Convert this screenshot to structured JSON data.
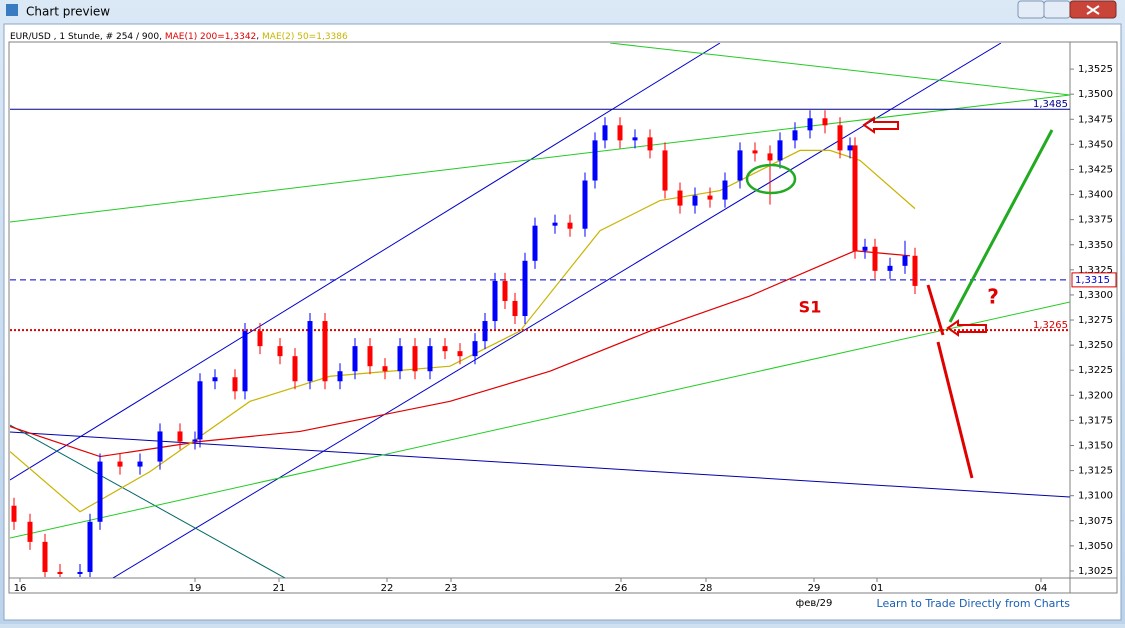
{
  "window_title": "Chart preview",
  "footer_link": "Learn to Trade Directly from Charts",
  "chart_data": {
    "type": "candlestick",
    "title": "EUR/USD , 1 Stunde, # 254 / 900,",
    "x": [
      1,
      5,
      8.75,
      12.5,
      17.5,
      20,
      22.5,
      27.5,
      32.5,
      37.5,
      42.5,
      46.25,
      47.5,
      51.25,
      56.25,
      58.75,
      62.5,
      67.5,
      71.25,
      75,
      78.75,
      82.5,
      86.25,
      90,
      93.75,
      97.5,
      101.25,
      105,
      108.75,
      112.5,
      116.25,
      118.75,
      121.25,
      123.75,
      126.25,
      128.75,
      131.25,
      136.25,
      140,
      143.75,
      146.25,
      148.75,
      152.5,
      156.25,
      160,
      163.75,
      167.5,
      171.25,
      175,
      178.75,
      182.5,
      186.25,
      190,
      192.5,
      196.25,
      200,
      203.75,
      207.5,
      210,
      211.25,
      213.75,
      216.25,
      220,
      223.75,
      226.25
    ],
    "open": [
      1.309,
      1.3074,
      1.3054,
      1.3024,
      1.3022,
      1.3024,
      1.3074,
      1.3134,
      1.3129,
      1.3134,
      1.3164,
      1.3154,
      1.3156,
      1.3214,
      1.3218,
      1.3204,
      1.3264,
      1.3249,
      1.3239,
      1.3214,
      1.3274,
      1.3214,
      1.3224,
      1.3249,
      1.3229,
      1.3224,
      1.3249,
      1.3224,
      1.3249,
      1.3244,
      1.3239,
      1.3254,
      1.3274,
      1.3314,
      1.3294,
      1.3279,
      1.3334,
      1.3369,
      1.3372,
      1.3366,
      1.3414,
      1.3454,
      1.3469,
      1.3454,
      1.3457,
      1.3444,
      1.3404,
      1.3389,
      1.3399,
      1.3395,
      1.3414,
      1.3444,
      1.3441,
      1.3434,
      1.3454,
      1.3464,
      1.3476,
      1.3469,
      1.3444,
      1.3449,
      1.3344,
      1.3348,
      1.3324,
      1.3329,
      1.3339
    ],
    "high": [
      1.3098,
      1.3082,
      1.3062,
      1.3032,
      1.3032,
      1.3082,
      1.3142,
      1.3142,
      1.3142,
      1.3172,
      1.3172,
      1.3164,
      1.3222,
      1.3226,
      1.3226,
      1.3272,
      1.3272,
      1.3257,
      1.3247,
      1.3282,
      1.3282,
      1.3232,
      1.3257,
      1.3257,
      1.3237,
      1.3257,
      1.3257,
      1.3257,
      1.3257,
      1.3252,
      1.3262,
      1.3282,
      1.3322,
      1.3322,
      1.3302,
      1.3342,
      1.3377,
      1.338,
      1.338,
      1.3422,
      1.3462,
      1.3477,
      1.3477,
      1.3465,
      1.3465,
      1.3452,
      1.3412,
      1.3407,
      1.3407,
      1.3422,
      1.3452,
      1.3452,
      1.3449,
      1.3462,
      1.3472,
      1.3484,
      1.3484,
      1.3477,
      1.3457,
      1.3457,
      1.3356,
      1.3356,
      1.3337,
      1.3354,
      1.3347
    ],
    "low": [
      1.3066,
      1.3046,
      1.3019,
      1.3019,
      1.3019,
      1.3019,
      1.3066,
      1.3121,
      1.3121,
      1.3126,
      1.3146,
      1.3146,
      1.3148,
      1.3206,
      1.3196,
      1.3196,
      1.3241,
      1.3231,
      1.3206,
      1.3206,
      1.3206,
      1.3206,
      1.3216,
      1.3221,
      1.3216,
      1.3216,
      1.3216,
      1.3216,
      1.3236,
      1.3231,
      1.3231,
      1.3246,
      1.3266,
      1.3286,
      1.3271,
      1.3271,
      1.3326,
      1.3361,
      1.3358,
      1.3358,
      1.3406,
      1.3446,
      1.3446,
      1.3446,
      1.3436,
      1.3396,
      1.3381,
      1.3381,
      1.3387,
      1.3387,
      1.3406,
      1.3433,
      1.339,
      1.3426,
      1.3446,
      1.3456,
      1.3461,
      1.3436,
      1.3436,
      1.3336,
      1.3336,
      1.3316,
      1.3316,
      1.3321,
      1.3301
    ],
    "close": [
      1.3074,
      1.3054,
      1.3024,
      1.3022,
      1.3024,
      1.3074,
      1.3134,
      1.3129,
      1.3134,
      1.3164,
      1.3154,
      1.3156,
      1.3214,
      1.3218,
      1.3204,
      1.3264,
      1.3249,
      1.3239,
      1.3214,
      1.3274,
      1.3214,
      1.3224,
      1.3249,
      1.3229,
      1.3224,
      1.3249,
      1.3224,
      1.3249,
      1.3244,
      1.3239,
      1.3254,
      1.3274,
      1.3314,
      1.3294,
      1.3279,
      1.3334,
      1.3369,
      1.3372,
      1.3366,
      1.3414,
      1.3454,
      1.3469,
      1.3454,
      1.3457,
      1.3444,
      1.3404,
      1.3389,
      1.3399,
      1.3395,
      1.3414,
      1.3444,
      1.3441,
      1.3434,
      1.3454,
      1.3464,
      1.3476,
      1.3469,
      1.3444,
      1.3449,
      1.3344,
      1.3348,
      1.3324,
      1.3329,
      1.3339,
      1.3309
    ],
    "up_color": "#0000ff",
    "down_color": "#ff0000",
    "series": [
      {
        "name": "MAE(1) 200=1,3342",
        "color": "#e00000",
        "x": [
          0,
          22.5,
          47.5,
          72.5,
          110,
          135,
          160,
          185,
          202.5,
          211.25,
          225
        ],
        "values": [
          1.3169,
          1.3139,
          1.3154,
          1.3164,
          1.3194,
          1.3224,
          1.3264,
          1.3299,
          1.3329,
          1.3344,
          1.3339
        ]
      },
      {
        "name": "MAE(2) 50=1,3386",
        "color": "#c8b400",
        "x": [
          0,
          17.5,
          35,
          60,
          80,
          110,
          127.5,
          147.5,
          162.5,
          177.5,
          197.5,
          205,
          212.5,
          226.25
        ],
        "values": [
          1.3144,
          1.3084,
          1.3124,
          1.3194,
          1.3219,
          1.3229,
          1.3264,
          1.3364,
          1.3394,
          1.3404,
          1.3444,
          1.3444,
          1.3434,
          1.3386
        ]
      }
    ],
    "price_lines": [
      {
        "value": 1.3485,
        "label": "1,3485",
        "color": "#00008b"
      },
      {
        "value": 1.3315,
        "label": "1,3315",
        "color": "#0000cc"
      },
      {
        "value": 1.3265,
        "label": "1,3265",
        "color": "#dd0000"
      }
    ],
    "annotations": [
      "S1",
      "?"
    ],
    "x_sublabel": "фев/29",
    "xlim": [
      0,
      265
    ],
    "xticks": [
      {
        "value": 2.5,
        "label": "16"
      },
      {
        "value": 46.25,
        "label": "19"
      },
      {
        "value": 67.25,
        "label": "21"
      },
      {
        "value": 94.25,
        "label": "22"
      },
      {
        "value": 110.25,
        "label": "23"
      },
      {
        "value": 152.75,
        "label": "26"
      },
      {
        "value": 174,
        "label": "28"
      },
      {
        "value": 201,
        "label": "29"
      },
      {
        "value": 216.75,
        "label": "01"
      },
      {
        "value": 257.75,
        "label": "04"
      }
    ],
    "ylim": [
      1.3018,
      1.3551
    ],
    "yticks": [
      {
        "value": 1.3025,
        "label": "1,3025"
      },
      {
        "value": 1.305,
        "label": "1,3050"
      },
      {
        "value": 1.3075,
        "label": "1,3075"
      },
      {
        "value": 1.31,
        "label": "1,3100"
      },
      {
        "value": 1.3125,
        "label": "1,3125"
      },
      {
        "value": 1.315,
        "label": "1,3150"
      },
      {
        "value": 1.3175,
        "label": "1,3175"
      },
      {
        "value": 1.32,
        "label": "1,3200"
      },
      {
        "value": 1.3225,
        "label": "1,3225"
      },
      {
        "value": 1.325,
        "label": "1,3250"
      },
      {
        "value": 1.3275,
        "label": "1,3275"
      },
      {
        "value": 1.33,
        "label": "1,3300"
      },
      {
        "value": 1.3325,
        "label": "1,3325"
      },
      {
        "value": 1.335,
        "label": "1,3350"
      },
      {
        "value": 1.3375,
        "label": "1,3375"
      },
      {
        "value": 1.34,
        "label": "1,3400"
      },
      {
        "value": 1.3425,
        "label": "1,3425"
      },
      {
        "value": 1.345,
        "label": "1,3450"
      },
      {
        "value": 1.3475,
        "label": "1,3475"
      },
      {
        "value": 1.35,
        "label": "1,3500"
      },
      {
        "value": 1.3525,
        "label": "1,3525"
      }
    ]
  }
}
